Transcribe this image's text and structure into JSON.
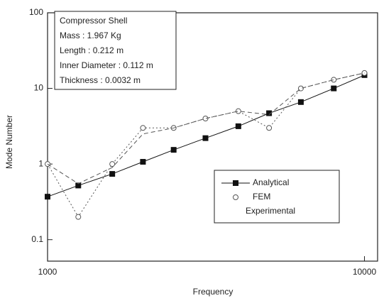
{
  "chart_data": {
    "type": "line",
    "xlabel": "Frequency",
    "ylabel": "Mode Number",
    "annotations": [
      "Compressor Shell",
      "Mass : 1.967 Kg",
      "Length : 0.212 m",
      "Inner Diameter : 0.112 m",
      "Thickness : 0.0032 m"
    ],
    "x": [
      1000,
      1250,
      1600,
      2000,
      2500,
      3150,
      4000,
      5000,
      6300,
      8000,
      10000
    ],
    "series": [
      {
        "name": "Analytical",
        "color": "#111111",
        "style": "solid",
        "marker": "square",
        "values": [
          0.37,
          0.52,
          0.74,
          1.07,
          1.54,
          2.2,
          3.16,
          4.7,
          6.6,
          10,
          15
        ]
      },
      {
        "name": "FEM",
        "color": "#555555",
        "style": "dotted",
        "marker": "circle",
        "values": [
          1.0,
          0.2,
          1.0,
          3,
          3,
          4,
          5,
          3,
          10,
          13,
          16
        ]
      },
      {
        "name": "Experimental",
        "color": "#555555",
        "style": "dashed",
        "marker": "none",
        "values": [
          1.0,
          0.55,
          0.9,
          2.5,
          3,
          4,
          5,
          4.5,
          10,
          13,
          16
        ]
      }
    ],
    "xscale": "log",
    "yscale": "log",
    "xlim": [
      1000,
      11000
    ],
    "ylim": [
      0.052,
      100
    ],
    "xticks": [
      1000,
      10000
    ],
    "yticks": [
      0.1,
      1,
      10,
      100
    ],
    "legend": "lower right"
  }
}
